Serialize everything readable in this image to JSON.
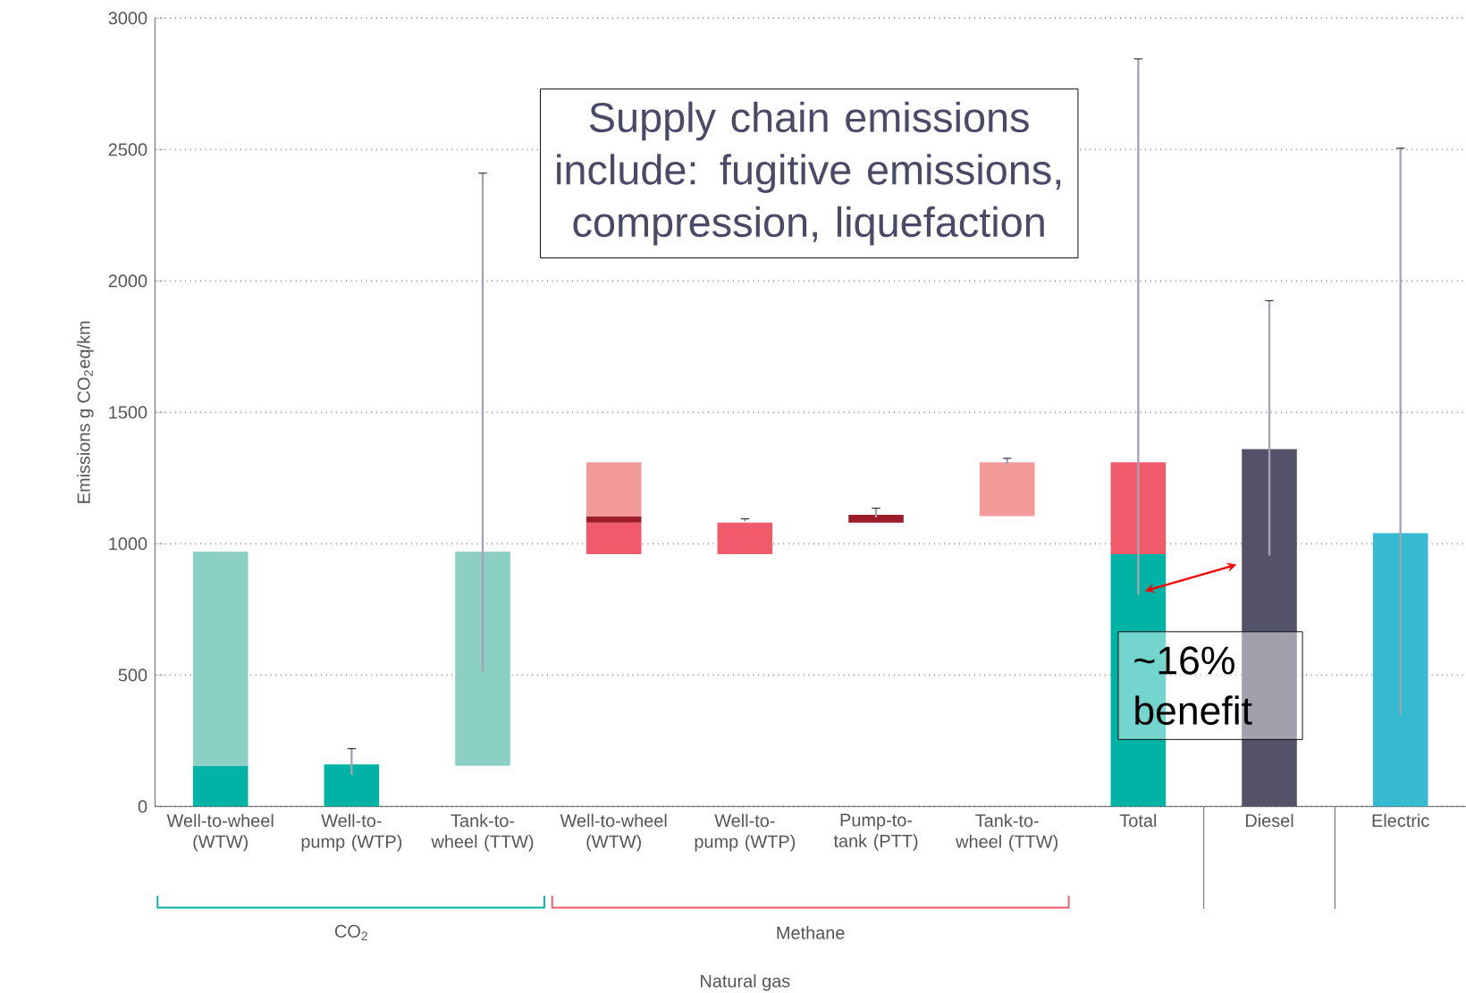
{
  "chart_data": {
    "type": "bar",
    "ylabel": "Emissions g CO$_{2}$eq/km",
    "categories": [
      "Well-to-wheel (WTW)",
      "Well-to-pump (WTP)",
      "Tank-to-wheel (TTW)",
      "Well-to-wheel (WTW)",
      "Well-to-pump (WTP)",
      "Pump-to-tank (PTT)",
      "Tank-to-wheel (TTW)",
      "Total",
      "Diesel",
      "Electric"
    ],
    "series": [
      {
        "color": "#00b3a4",
        "base": [
          0,
          0,
          null,
          null,
          null,
          null,
          null,
          0,
          null,
          null
        ],
        "values": [
          155,
          160,
          null,
          null,
          null,
          null,
          null,
          960,
          null,
          null
        ],
        "errors": [
          null,
          [
            120,
            220
          ],
          null,
          null,
          null,
          null,
          null,
          null,
          null,
          null
        ]
      },
      {
        "color": "#8ccfc4",
        "base": [
          155,
          null,
          155,
          null,
          null,
          null,
          null,
          null,
          null,
          null
        ],
        "values": [
          815,
          null,
          815,
          null,
          null,
          null,
          null,
          null,
          null,
          null
        ],
        "errors": [
          null,
          null,
          [
            515,
            2410
          ],
          null,
          null,
          null,
          null,
          null,
          null,
          null
        ]
      },
      {
        "color": "#f05a6a",
        "base": [
          null,
          null,
          null,
          960,
          960,
          null,
          null,
          960,
          null,
          null
        ],
        "values": [
          null,
          null,
          null,
          120,
          120,
          null,
          null,
          350,
          null,
          null
        ],
        "errors": [
          null,
          null,
          null,
          null,
          [
            1085,
            1095
          ],
          null,
          null,
          [
            805,
            2845
          ],
          null,
          null
        ]
      },
      {
        "color": "#9e1b2a",
        "base": [
          null,
          null,
          null,
          1080,
          null,
          1080,
          null,
          null,
          null,
          null
        ],
        "values": [
          null,
          null,
          null,
          25,
          null,
          30,
          null,
          null,
          null,
          null
        ],
        "errors": [
          null,
          null,
          null,
          null,
          null,
          [
            1100,
            1135
          ],
          null,
          null,
          null,
          null
        ]
      },
      {
        "color": "#f29a98",
        "base": [
          null,
          null,
          null,
          1105,
          null,
          null,
          1105,
          null,
          null,
          null
        ],
        "values": [
          null,
          null,
          null,
          205,
          null,
          null,
          205,
          null,
          null,
          null
        ],
        "errors": [
          null,
          null,
          null,
          null,
          null,
          null,
          [
            1300,
            1325
          ],
          null,
          null,
          null
        ]
      },
      {
        "color": "#545269",
        "base": [
          null,
          null,
          null,
          null,
          null,
          null,
          null,
          null,
          0,
          null
        ],
        "values": [
          null,
          null,
          null,
          null,
          null,
          null,
          null,
          null,
          1360,
          null
        ],
        "errors": [
          null,
          null,
          null,
          null,
          null,
          null,
          null,
          null,
          [
            955,
            1925
          ],
          null
        ]
      },
      {
        "color": "#35bad2",
        "base": [
          null,
          null,
          null,
          null,
          null,
          null,
          null,
          null,
          null,
          0
        ],
        "values": [
          null,
          null,
          null,
          null,
          null,
          null,
          null,
          null,
          null,
          1040
        ],
        "errors": [
          null,
          null,
          null,
          null,
          null,
          null,
          null,
          null,
          null,
          [
            350,
            2505
          ]
        ]
      }
    ],
    "ylim": [
      0,
      3000
    ],
    "yticks": [
      0,
      500,
      1000,
      1500,
      2000,
      2500,
      3000
    ],
    "grid": "y",
    "annotations": [
      "Supply chain emissions include: fugitive emissions, compression, liquefaction",
      "~16% benefit",
      "CO$_{2}$",
      "Methane",
      "Natural gas"
    ]
  }
}
